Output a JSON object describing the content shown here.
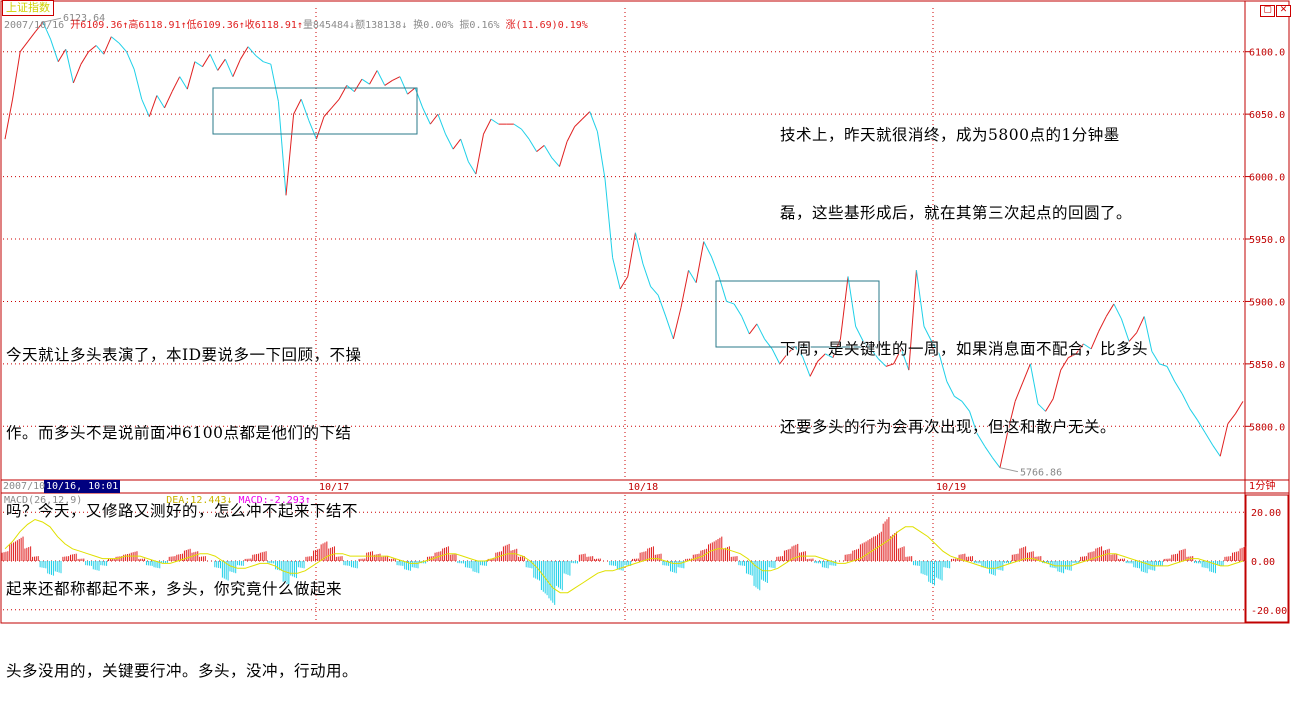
{
  "window": {
    "tab_title": "上证指数"
  },
  "header": {
    "date": "2007/10/16",
    "open": "开6109.36↑",
    "high": "高6118.91↑",
    "low": "低6109.36↑",
    "close": "收6118.91↑",
    "volume": "量845484↓",
    "amount": "额138138↓",
    "turnover": "换0.00%",
    "amplitude": "振0.16%",
    "change": "涨(11.69)0.19%"
  },
  "cursor": {
    "date_partial": "2007/10",
    "time": "10/16, 10:01"
  },
  "period_button": "1分钟",
  "colors": {
    "up": "#e02020",
    "down": "#1fd0e8",
    "frame": "#c00000",
    "grid": "#cc0000",
    "box": "#2a7a8a",
    "dea": "#e0e000",
    "macd_label": "#ee00ee"
  },
  "macd_legend": {
    "name": "MACD(26,12,9)",
    "dea": "DEA:12.443↓",
    "macd": "MACD:-2.293↑"
  },
  "annotations": {
    "top_right": [
      "技术上，昨天就很消终，成为5800点的1分钟墨",
      "磊，这些基形成后，就在其第三次起点的回圆了。",
      "",
      "下周，是关键性的一周，如果消息面不配合，比多头",
      "还要多头的行为会再次出现，但这和散户无关。"
    ],
    "left": [
      "今天就让多头表演了，本ID要说多一下回顾，不操",
      "作。而多头不是说前面冲6100点都是他们的下结",
      "吗？今天，又修路又测好的，怎么冲不起来下结不",
      "起来还都称都起不来，多头，你究竟什么做起来",
      "头多没用的，关键要行冲。多头，没冲，行动用。"
    ]
  },
  "chart_data": {
    "type": "line",
    "title": "",
    "price_axis_ticks": [
      "6100.0",
      "6050.0",
      "6000.0",
      "5950.0",
      "5900.0",
      "5850.0",
      "5800.0"
    ],
    "ylim": [
      5757,
      6135
    ],
    "date_labels": [
      "10/17",
      "10/18",
      "10/19"
    ],
    "annotated_high": "6123.64",
    "annotated_low": "5766.86",
    "series": [
      {
        "values": [
          6030,
          6062,
          6100,
          6108,
          6116,
          6123.64,
          6110,
          6092,
          6102,
          6075,
          6090,
          6100,
          6105,
          6098,
          6112,
          6107,
          6100,
          6086,
          6062,
          6048,
          6065,
          6055,
          6068,
          6080,
          6070,
          6092,
          6088,
          6098,
          6085,
          6094,
          6080,
          6094,
          6104,
          6097,
          6092,
          6090,
          6060,
          5985,
          6050,
          6062,
          6045,
          6030,
          6048,
          6055,
          6062,
          6073,
          6068,
          6078,
          6074,
          6085,
          6073,
          6077,
          6080,
          6066,
          6071,
          6055,
          6042,
          6050,
          6034,
          6022,
          6030,
          6012,
          6002,
          6034,
          6046,
          6042,
          6042,
          6042,
          6038,
          6030,
          6020,
          6025,
          6015,
          6008,
          6028,
          6040,
          6046,
          6052,
          6036,
          5998,
          5935,
          5910,
          5920,
          5955,
          5930,
          5912,
          5905,
          5888,
          5870,
          5895,
          5925,
          5915,
          5948,
          5936,
          5920,
          5900,
          5898,
          5888,
          5874,
          5882,
          5870,
          5862,
          5850,
          5858,
          5864,
          5856,
          5840,
          5852,
          5858,
          5855,
          5870,
          5920,
          5880,
          5868,
          5862,
          5854,
          5848,
          5850,
          5862,
          5845,
          5925,
          5880,
          5868,
          5858,
          5836,
          5824,
          5820,
          5812,
          5794,
          5784,
          5775,
          5766.86,
          5795,
          5820,
          5835,
          5850,
          5818,
          5812,
          5822,
          5845,
          5855,
          5858,
          5866,
          5862,
          5876,
          5888,
          5898,
          5886,
          5868,
          5875,
          5888,
          5860,
          5850,
          5848,
          5836,
          5826,
          5814,
          5805,
          5795,
          5785,
          5776,
          5802,
          5810,
          5820
        ]
      }
    ]
  },
  "macd_data": {
    "ylim": [
      -25,
      25
    ],
    "ticks": [
      "20.00",
      "0.00",
      "-20.00"
    ],
    "macd": [
      4,
      8,
      10,
      6,
      2,
      -3,
      -6,
      -5,
      2,
      3,
      1,
      -2,
      -4,
      -2,
      1,
      2,
      3,
      4,
      1,
      -2,
      -3,
      -1,
      2,
      3,
      5,
      4,
      2,
      0,
      -3,
      -8,
      -5,
      -2,
      1,
      3,
      4,
      -1,
      -4,
      -10,
      -7,
      -3,
      2,
      5,
      8,
      6,
      2,
      -2,
      -3,
      1,
      4,
      3,
      2,
      1,
      -2,
      -4,
      -3,
      -1,
      2,
      4,
      6,
      3,
      -1,
      -3,
      -5,
      -2,
      1,
      4,
      7,
      5,
      2,
      -3,
      -8,
      -14,
      -18,
      -12,
      -6,
      -1,
      3,
      2,
      1,
      0,
      -2,
      -4,
      -2,
      1,
      4,
      6,
      3,
      -2,
      -5,
      -3,
      1,
      3,
      5,
      8,
      10,
      6,
      2,
      -2,
      -6,
      -12,
      -9,
      -3,
      2,
      5,
      7,
      4,
      1,
      -1,
      -3,
      -2,
      0,
      3,
      5,
      8,
      10,
      12,
      18,
      12,
      6,
      2,
      -2,
      -6,
      -10,
      -8,
      -3,
      1,
      3,
      2,
      -1,
      -3,
      -6,
      -4,
      -1,
      3,
      6,
      4,
      2,
      -1,
      -3,
      -5,
      -4,
      -1,
      2,
      4,
      6,
      5,
      3,
      1,
      -1,
      -3,
      -5,
      -4,
      -2,
      1,
      3,
      5,
      2,
      -1,
      -3,
      -5,
      -2,
      2,
      4,
      6
    ],
    "dea": [
      5,
      8,
      12,
      15,
      17,
      16,
      14,
      10,
      7,
      5,
      4,
      3,
      2,
      1,
      1,
      1,
      2,
      2,
      2,
      1,
      0,
      -1,
      -1,
      0,
      1,
      2,
      3,
      3,
      2,
      0,
      -2,
      -3,
      -3,
      -2,
      -1,
      -1,
      -2,
      -4,
      -5,
      -5,
      -4,
      -2,
      0,
      2,
      3,
      3,
      2,
      2,
      2,
      2,
      2,
      2,
      1,
      0,
      -1,
      -1,
      0,
      1,
      2,
      3,
      3,
      2,
      1,
      0,
      0,
      1,
      2,
      3,
      3,
      2,
      0,
      -3,
      -7,
      -11,
      -13,
      -13,
      -11,
      -9,
      -7,
      -5,
      -4,
      -4,
      -3,
      -2,
      -1,
      0,
      1,
      1,
      0,
      -1,
      -1,
      0,
      1,
      2,
      4,
      5,
      5,
      4,
      3,
      1,
      -2,
      -4,
      -4,
      -3,
      -1,
      1,
      2,
      2,
      2,
      1,
      0,
      -1,
      -1,
      0,
      1,
      3,
      5,
      7,
      9,
      12,
      14,
      14,
      12,
      10,
      7,
      4,
      2,
      1,
      0,
      -1,
      -2,
      -3,
      -3,
      -2,
      -1,
      0,
      1,
      1,
      0,
      -1,
      -2,
      -2,
      -2,
      -1,
      0,
      1,
      2,
      3,
      3,
      2,
      1,
      0,
      -1,
      -2,
      -2,
      -2,
      -1,
      0,
      1,
      1,
      0,
      -1,
      -2,
      -2,
      -1,
      0
    ]
  }
}
